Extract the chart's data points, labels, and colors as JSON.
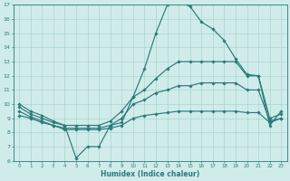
{
  "xlabel": "Humidex (Indice chaleur)",
  "x": [
    0,
    1,
    2,
    3,
    4,
    5,
    6,
    7,
    8,
    9,
    10,
    11,
    12,
    13,
    14,
    15,
    16,
    17,
    18,
    19,
    20,
    21,
    22,
    23
  ],
  "line1_y": [
    10.0,
    9.5,
    9.2,
    8.8,
    8.5,
    6.2,
    7.0,
    7.0,
    8.5,
    8.7,
    10.5,
    12.5,
    15.0,
    17.0,
    17.2,
    16.9,
    15.8,
    15.3,
    14.5,
    13.2,
    12.1,
    12.0,
    8.5,
    9.5
  ],
  "line2_y": [
    9.8,
    9.3,
    9.0,
    8.7,
    8.5,
    8.5,
    8.5,
    8.5,
    8.8,
    9.5,
    10.5,
    11.0,
    11.8,
    12.5,
    13.0,
    13.0,
    13.0,
    13.0,
    13.0,
    13.0,
    12.0,
    12.0,
    9.0,
    9.3
  ],
  "line3_y": [
    9.5,
    9.1,
    8.8,
    8.5,
    8.3,
    8.3,
    8.3,
    8.3,
    8.5,
    9.0,
    10.0,
    10.3,
    10.8,
    11.0,
    11.3,
    11.3,
    11.5,
    11.5,
    11.5,
    11.5,
    11.0,
    11.0,
    8.8,
    9.0
  ],
  "line4_y": [
    9.2,
    9.0,
    8.7,
    8.5,
    8.2,
    8.2,
    8.2,
    8.2,
    8.3,
    8.5,
    9.0,
    9.2,
    9.3,
    9.4,
    9.5,
    9.5,
    9.5,
    9.5,
    9.5,
    9.5,
    9.4,
    9.4,
    8.7,
    9.0
  ],
  "color": "#2a7a7a",
  "bg_color": "#d0ecea",
  "grid_color": "#aad4d0",
  "ylim": [
    6,
    17
  ],
  "xlim": [
    -0.5,
    23.5
  ],
  "yticks": [
    6,
    7,
    8,
    9,
    10,
    11,
    12,
    13,
    14,
    15,
    16,
    17
  ],
  "xticks": [
    0,
    1,
    2,
    3,
    4,
    5,
    6,
    7,
    8,
    9,
    10,
    11,
    12,
    13,
    14,
    15,
    16,
    17,
    18,
    19,
    20,
    21,
    22,
    23
  ]
}
